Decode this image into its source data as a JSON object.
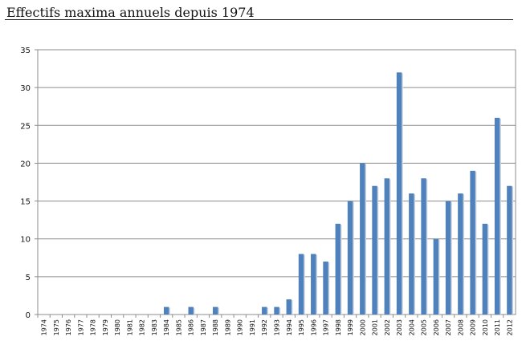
{
  "chart_data": {
    "type": "bar",
    "title": "Effectifs maxima annuels depuis 1974",
    "xlabel": "",
    "ylabel": "",
    "ylim": [
      0,
      35
    ],
    "yticks": [
      "0",
      "5",
      "10",
      "15",
      "20",
      "25",
      "30",
      "35"
    ],
    "grid": true,
    "legend": "none",
    "bar_color": "#4F81BD",
    "categories": [
      "1974",
      "1975",
      "1976",
      "1977",
      "1978",
      "1979",
      "1980",
      "1981",
      "1982",
      "1983",
      "1984",
      "1985",
      "1986",
      "1987",
      "1988",
      "1989",
      "1990",
      "1991",
      "1992",
      "1993",
      "1994",
      "1995",
      "1996",
      "1997",
      "1998",
      "1999",
      "2000",
      "2001",
      "2002",
      "2003",
      "2004",
      "2005",
      "2006",
      "2007",
      "2008",
      "2009",
      "2010",
      "2011",
      "2012"
    ],
    "values": [
      0,
      0,
      0,
      0,
      0,
      0,
      0,
      0,
      0,
      0,
      1,
      0,
      1,
      0,
      1,
      0,
      0,
      0,
      1,
      1,
      2,
      8,
      8,
      7,
      12,
      15,
      20,
      17,
      18,
      32,
      16,
      18,
      10,
      15,
      16,
      19,
      12,
      26,
      17
    ]
  }
}
